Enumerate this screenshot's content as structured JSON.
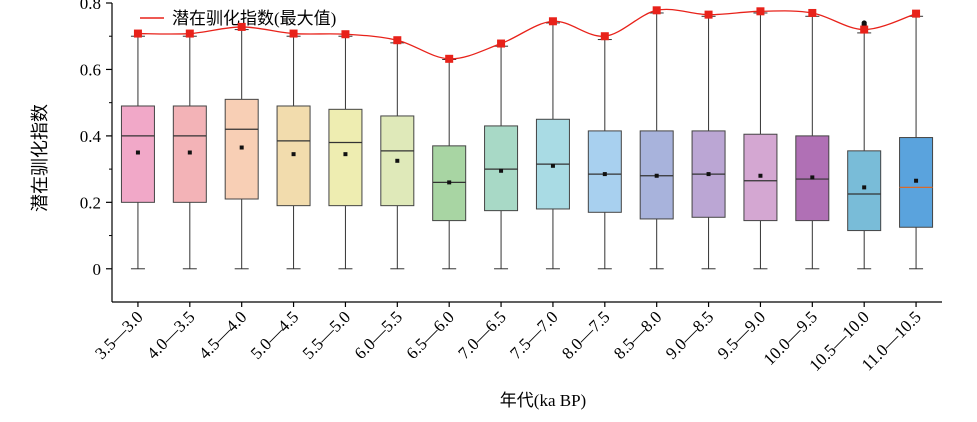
{
  "chart_data": {
    "type": "box",
    "title": "",
    "xlabel": "年代(ka BP)",
    "ylabel": "潜在驯化指数",
    "ylim": [
      -0.1,
      0.8
    ],
    "y_ticks": [
      "0",
      "0.2",
      "0.4",
      "0.6",
      "0.8"
    ],
    "categories": [
      "3.5—3.0",
      "4.0—3.5",
      "4.5—4.0",
      "5.0—4.5",
      "5.5—5.0",
      "6.0—5.5",
      "6.5—6.0",
      "7.0—6.5",
      "7.5—7.0",
      "8.0—7.5",
      "8.5—8.0",
      "9.0—8.5",
      "9.5—9.0",
      "10.0—9.5",
      "10.5—10.0",
      "11.0—10.5"
    ],
    "box_stats": [
      {
        "min": 0,
        "q1": 0.2,
        "median": 0.4,
        "q3": 0.49,
        "max": 0.7,
        "mean": 0.35
      },
      {
        "min": 0,
        "q1": 0.2,
        "median": 0.4,
        "q3": 0.49,
        "max": 0.7,
        "mean": 0.35
      },
      {
        "min": 0,
        "q1": 0.21,
        "median": 0.42,
        "q3": 0.51,
        "max": 0.72,
        "mean": 0.365
      },
      {
        "min": 0,
        "q1": 0.19,
        "median": 0.385,
        "q3": 0.49,
        "max": 0.7,
        "mean": 0.345
      },
      {
        "min": 0,
        "q1": 0.19,
        "median": 0.38,
        "q3": 0.48,
        "max": 0.7,
        "mean": 0.345
      },
      {
        "min": 0,
        "q1": 0.19,
        "median": 0.355,
        "q3": 0.46,
        "max": 0.68,
        "mean": 0.325
      },
      {
        "min": 0,
        "q1": 0.145,
        "median": 0.26,
        "q3": 0.37,
        "max": 0.63,
        "mean": 0.26
      },
      {
        "min": 0,
        "q1": 0.175,
        "median": 0.3,
        "q3": 0.43,
        "max": 0.67,
        "mean": 0.295
      },
      {
        "min": 0,
        "q1": 0.18,
        "median": 0.315,
        "q3": 0.45,
        "max": 0.74,
        "mean": 0.31
      },
      {
        "min": 0,
        "q1": 0.17,
        "median": 0.285,
        "q3": 0.415,
        "max": 0.69,
        "mean": 0.285
      },
      {
        "min": 0,
        "q1": 0.15,
        "median": 0.28,
        "q3": 0.415,
        "max": 0.77,
        "mean": 0.28
      },
      {
        "min": 0,
        "q1": 0.155,
        "median": 0.285,
        "q3": 0.415,
        "max": 0.76,
        "mean": 0.285
      },
      {
        "min": 0,
        "q1": 0.145,
        "median": 0.265,
        "q3": 0.405,
        "max": 0.77,
        "mean": 0.28
      },
      {
        "min": 0,
        "q1": 0.145,
        "median": 0.27,
        "q3": 0.4,
        "max": 0.76,
        "mean": 0.275
      },
      {
        "min": 0,
        "q1": 0.115,
        "median": 0.225,
        "q3": 0.355,
        "max": 0.71,
        "mean": 0.245,
        "outliers": [
          0.725,
          0.73,
          0.735,
          0.74
        ]
      },
      {
        "min": 0,
        "q1": 0.125,
        "median": 0.245,
        "q3": 0.395,
        "max": 0.76,
        "mean": 0.265
      }
    ],
    "max_line": {
      "name": "潜在驯化指数(最大值)",
      "color": "#e8221a",
      "values": [
        0.708,
        0.708,
        0.728,
        0.708,
        0.706,
        0.688,
        0.632,
        0.678,
        0.745,
        0.7,
        0.778,
        0.765,
        0.775,
        0.77,
        0.72,
        0.768
      ]
    },
    "box_fill_colors": [
      "#f1a8c8",
      "#f3b3b7",
      "#f8cfb5",
      "#f2dcad",
      "#eeedb1",
      "#dfe9b9",
      "#a8d5a3",
      "#a8d9c6",
      "#a9dbe4",
      "#a8d0ef",
      "#a8b3dc",
      "#bba6d4",
      "#d4a7d2",
      "#b070b5",
      "#79bcd8",
      "#5aa3dd"
    ],
    "median_colors": [
      "#333333",
      "#333333",
      "#333333",
      "#333333",
      "#333333",
      "#333333",
      "#333333",
      "#333333",
      "#333333",
      "#333333",
      "#333333",
      "#333333",
      "#333333",
      "#333333",
      "#333333",
      "#d86a2a"
    ],
    "legend_position": "top-left",
    "grid": false
  }
}
